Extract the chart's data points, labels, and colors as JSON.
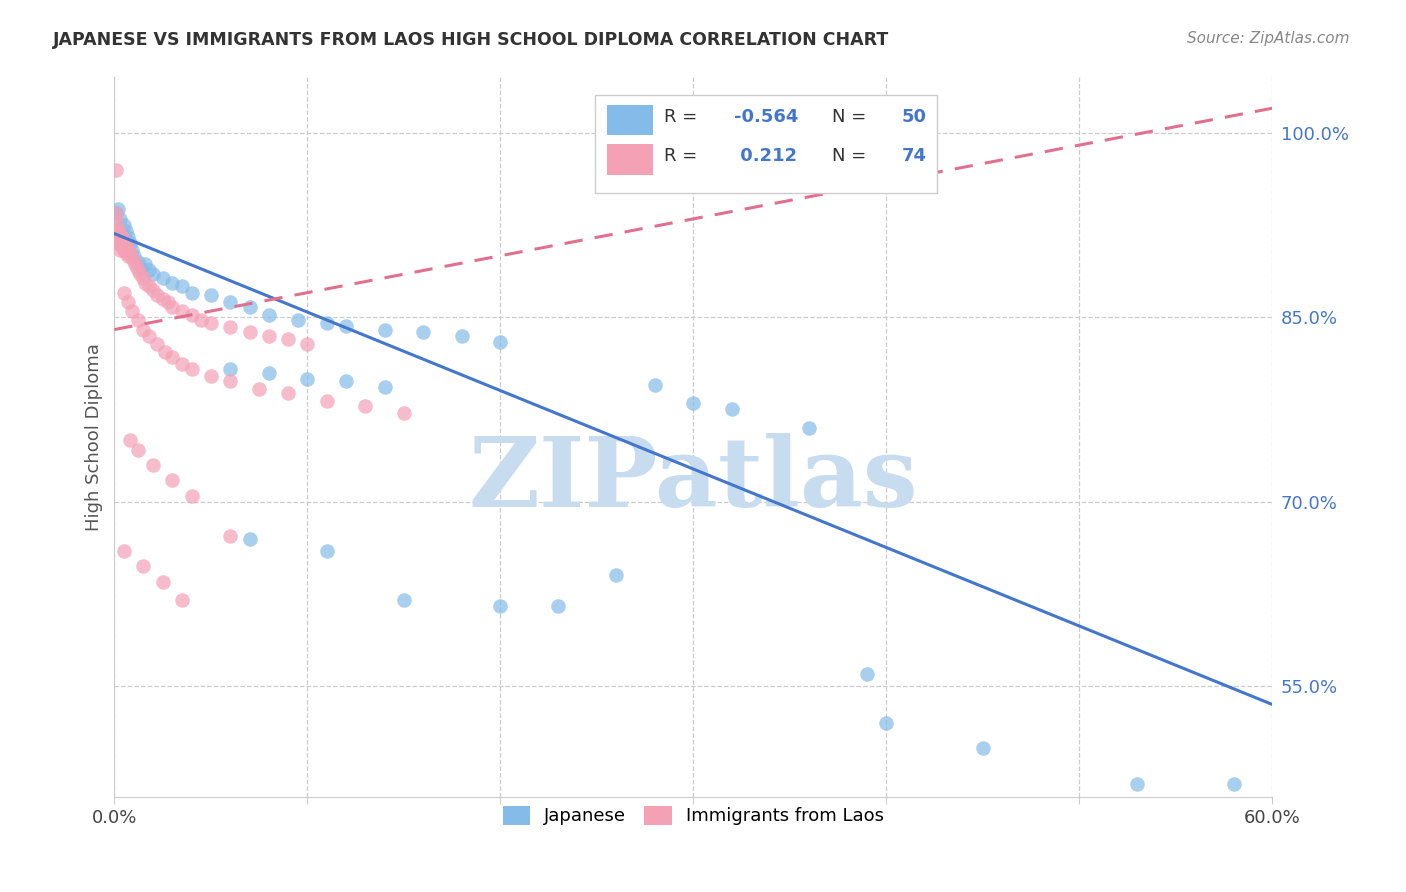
{
  "title": "JAPANESE VS IMMIGRANTS FROM LAOS HIGH SCHOOL DIPLOMA CORRELATION CHART",
  "source": "Source: ZipAtlas.com",
  "ylabel": "High School Diploma",
  "xlim": [
    0.0,
    0.6
  ],
  "ylim": [
    0.46,
    1.045
  ],
  "xtick_positions": [
    0.0,
    0.1,
    0.2,
    0.3,
    0.4,
    0.5,
    0.6
  ],
  "xticklabels": [
    "0.0%",
    "",
    "",
    "",
    "",
    "",
    "60.0%"
  ],
  "right_ytick_positions": [
    0.55,
    0.7,
    0.85,
    1.0
  ],
  "right_ytick_labels": [
    "55.0%",
    "70.0%",
    "85.0%",
    "100.0%"
  ],
  "japanese_color": "#85BBE8",
  "laos_color": "#F4A0B5",
  "japanese_line_color": "#4477CC",
  "laos_line_color": "#E07090",
  "watermark": "ZIPatlas",
  "watermark_color": "#C8DCF0",
  "japanese_scatter": [
    [
      0.001,
      0.935
    ],
    [
      0.002,
      0.938
    ],
    [
      0.003,
      0.93
    ],
    [
      0.004,
      0.918
    ],
    [
      0.005,
      0.925
    ],
    [
      0.006,
      0.92
    ],
    [
      0.007,
      0.915
    ],
    [
      0.008,
      0.91
    ],
    [
      0.009,
      0.905
    ],
    [
      0.01,
      0.9
    ],
    [
      0.012,
      0.895
    ],
    [
      0.014,
      0.89
    ],
    [
      0.016,
      0.893
    ],
    [
      0.018,
      0.888
    ],
    [
      0.02,
      0.885
    ],
    [
      0.025,
      0.882
    ],
    [
      0.03,
      0.878
    ],
    [
      0.035,
      0.875
    ],
    [
      0.04,
      0.87
    ],
    [
      0.05,
      0.868
    ],
    [
      0.06,
      0.862
    ],
    [
      0.07,
      0.858
    ],
    [
      0.08,
      0.852
    ],
    [
      0.095,
      0.848
    ],
    [
      0.11,
      0.845
    ],
    [
      0.12,
      0.843
    ],
    [
      0.14,
      0.84
    ],
    [
      0.16,
      0.838
    ],
    [
      0.18,
      0.835
    ],
    [
      0.2,
      0.83
    ],
    [
      0.06,
      0.808
    ],
    [
      0.08,
      0.805
    ],
    [
      0.1,
      0.8
    ],
    [
      0.12,
      0.798
    ],
    [
      0.14,
      0.793
    ],
    [
      0.07,
      0.67
    ],
    [
      0.11,
      0.66
    ],
    [
      0.15,
      0.62
    ],
    [
      0.2,
      0.615
    ],
    [
      0.23,
      0.615
    ],
    [
      0.26,
      0.64
    ],
    [
      0.28,
      0.795
    ],
    [
      0.3,
      0.78
    ],
    [
      0.32,
      0.775
    ],
    [
      0.36,
      0.76
    ],
    [
      0.39,
      0.56
    ],
    [
      0.4,
      0.52
    ],
    [
      0.45,
      0.5
    ],
    [
      0.53,
      0.47
    ],
    [
      0.58,
      0.47
    ]
  ],
  "laos_scatter": [
    [
      0.001,
      0.935
    ],
    [
      0.001,
      0.928
    ],
    [
      0.001,
      0.92
    ],
    [
      0.002,
      0.922
    ],
    [
      0.002,
      0.915
    ],
    [
      0.002,
      0.91
    ],
    [
      0.003,
      0.918
    ],
    [
      0.003,
      0.912
    ],
    [
      0.003,
      0.905
    ],
    [
      0.004,
      0.915
    ],
    [
      0.004,
      0.908
    ],
    [
      0.005,
      0.912
    ],
    [
      0.005,
      0.905
    ],
    [
      0.006,
      0.908
    ],
    [
      0.006,
      0.902
    ],
    [
      0.007,
      0.905
    ],
    [
      0.007,
      0.9
    ],
    [
      0.008,
      0.902
    ],
    [
      0.009,
      0.898
    ],
    [
      0.01,
      0.895
    ],
    [
      0.011,
      0.892
    ],
    [
      0.012,
      0.888
    ],
    [
      0.013,
      0.885
    ],
    [
      0.015,
      0.882
    ],
    [
      0.016,
      0.878
    ],
    [
      0.018,
      0.875
    ],
    [
      0.02,
      0.872
    ],
    [
      0.022,
      0.868
    ],
    [
      0.025,
      0.865
    ],
    [
      0.028,
      0.862
    ],
    [
      0.03,
      0.858
    ],
    [
      0.035,
      0.855
    ],
    [
      0.04,
      0.852
    ],
    [
      0.045,
      0.848
    ],
    [
      0.05,
      0.845
    ],
    [
      0.06,
      0.842
    ],
    [
      0.07,
      0.838
    ],
    [
      0.08,
      0.835
    ],
    [
      0.09,
      0.832
    ],
    [
      0.1,
      0.828
    ],
    [
      0.005,
      0.87
    ],
    [
      0.007,
      0.862
    ],
    [
      0.009,
      0.855
    ],
    [
      0.012,
      0.848
    ],
    [
      0.015,
      0.84
    ],
    [
      0.018,
      0.835
    ],
    [
      0.022,
      0.828
    ],
    [
      0.026,
      0.822
    ],
    [
      0.03,
      0.818
    ],
    [
      0.035,
      0.812
    ],
    [
      0.04,
      0.808
    ],
    [
      0.05,
      0.802
    ],
    [
      0.06,
      0.798
    ],
    [
      0.075,
      0.792
    ],
    [
      0.09,
      0.788
    ],
    [
      0.11,
      0.782
    ],
    [
      0.13,
      0.778
    ],
    [
      0.15,
      0.772
    ],
    [
      0.008,
      0.75
    ],
    [
      0.012,
      0.742
    ],
    [
      0.02,
      0.73
    ],
    [
      0.03,
      0.718
    ],
    [
      0.04,
      0.705
    ],
    [
      0.06,
      0.672
    ],
    [
      0.005,
      0.66
    ],
    [
      0.015,
      0.648
    ],
    [
      0.025,
      0.635
    ],
    [
      0.035,
      0.62
    ],
    [
      0.001,
      0.97
    ]
  ],
  "jp_line_x0": 0.0,
  "jp_line_y0": 0.918,
  "jp_line_x1": 0.6,
  "jp_line_y1": 0.535,
  "la_line_x0": 0.0,
  "la_line_y0": 0.84,
  "la_line_x1": 0.6,
  "la_line_y1": 1.02
}
